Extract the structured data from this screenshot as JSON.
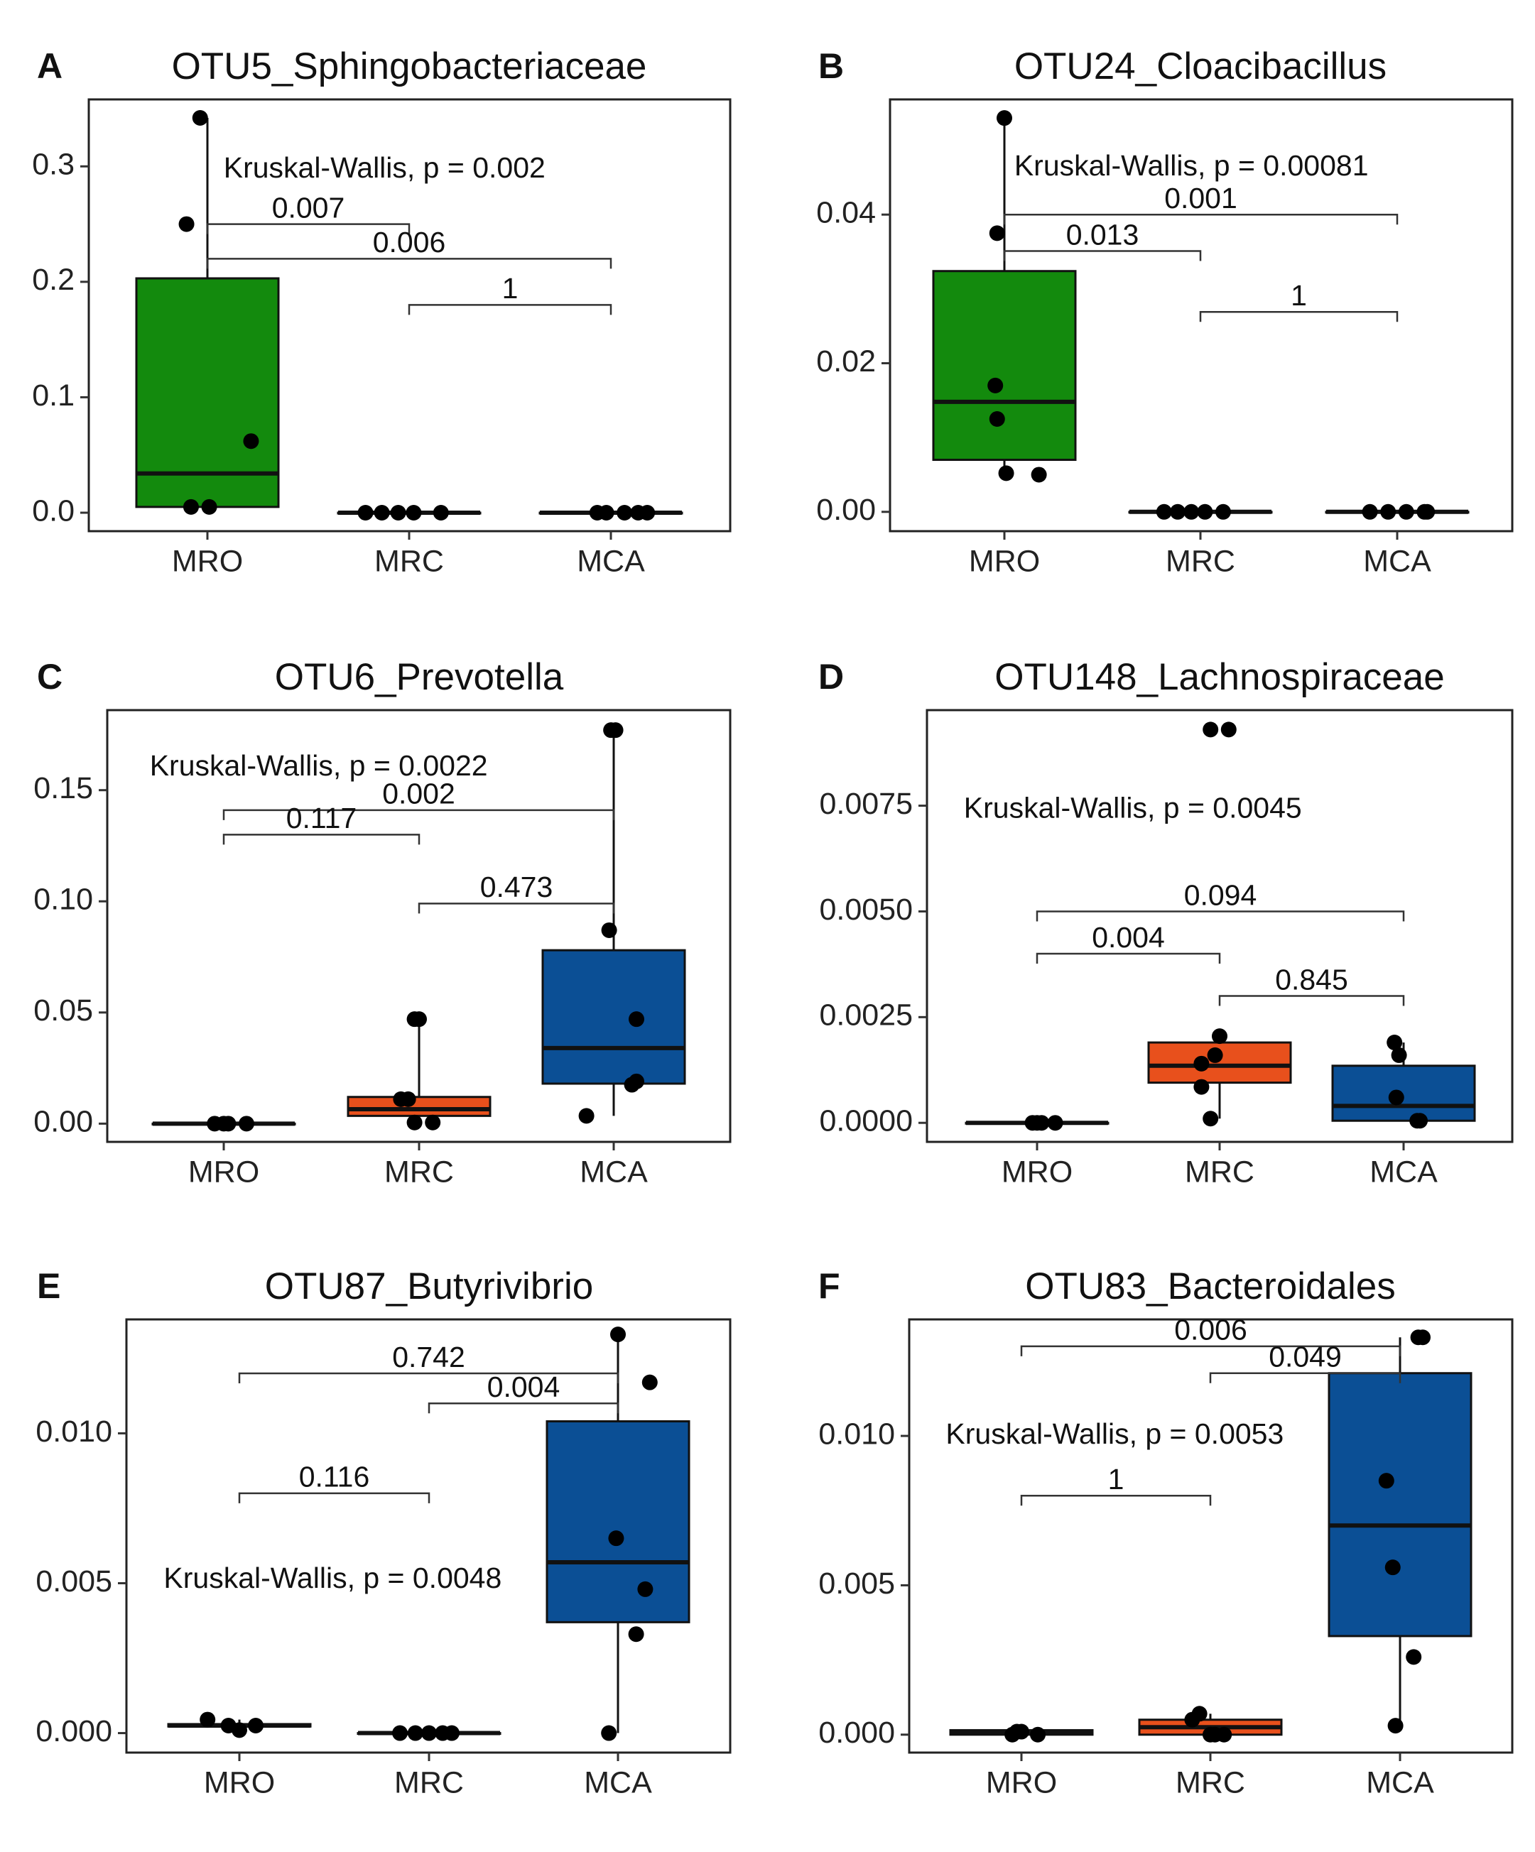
{
  "chart_data": [
    {
      "panel": "A",
      "type": "box",
      "title": "OTU5_Sphingobacteriaceae",
      "categories": [
        "MRO",
        "MRC",
        "MCA"
      ],
      "ylim": [
        -0.016,
        0.358
      ],
      "yticks": [
        {
          "value": 0.0,
          "label": "0.0"
        },
        {
          "value": 0.1,
          "label": "0.1"
        },
        {
          "value": 0.2,
          "label": "0.2"
        },
        {
          "value": 0.3,
          "label": "0.3"
        }
      ],
      "boxes": [
        {
          "group": "MRO",
          "color": "#138a0d",
          "q1": 0.005,
          "median": 0.034,
          "q3": 0.203,
          "wlow": 0.005,
          "whigh": 0.342,
          "points": [
            {
              "j": -0.08,
              "v": 0.342
            },
            {
              "j": -0.23,
              "v": 0.25
            },
            {
              "j": 0.48,
              "v": 0.062
            },
            {
              "j": -0.18,
              "v": 0.005
            },
            {
              "j": 0.02,
              "v": 0.005
            }
          ]
        },
        {
          "group": "MRC",
          "color": "#e8501c",
          "q1": 0.0,
          "median": 0.0,
          "q3": 0.0,
          "wlow": 0.0,
          "whigh": 0.0,
          "points": [
            {
              "j": -0.48,
              "v": 0.0
            },
            {
              "j": -0.3,
              "v": 0.0
            },
            {
              "j": -0.12,
              "v": 0.0
            },
            {
              "j": 0.05,
              "v": 0.0
            },
            {
              "j": 0.35,
              "v": 0.0
            }
          ]
        },
        {
          "group": "MCA",
          "color": "#0b4f95",
          "q1": 0.0,
          "median": 0.0,
          "q3": 0.0,
          "wlow": 0.0,
          "whigh": 0.0,
          "points": [
            {
              "j": -0.15,
              "v": 0.0
            },
            {
              "j": -0.05,
              "v": 0.0
            },
            {
              "j": 0.15,
              "v": 0.0
            },
            {
              "j": 0.3,
              "v": 0.0
            },
            {
              "j": 0.4,
              "v": 0.0
            }
          ]
        }
      ],
      "comparisons": [
        {
          "from": 1,
          "to": 2,
          "y": 0.25,
          "label": "0.007"
        },
        {
          "from": 1,
          "to": 3,
          "y": 0.22,
          "label": "0.006"
        },
        {
          "from": 2,
          "to": 3,
          "y": 0.18,
          "label": "1"
        }
      ],
      "stat": {
        "text": "Kruskal-Wallis, p = 0.002",
        "x": 1.08,
        "y": 0.297
      }
    },
    {
      "panel": "B",
      "type": "box",
      "title": "OTU24_Cloacibacillus",
      "categories": [
        "MRO",
        "MRC",
        "MCA"
      ],
      "ylim": [
        -0.0026,
        0.0555
      ],
      "yticks": [
        {
          "value": 0.0,
          "label": "0.00"
        },
        {
          "value": 0.02,
          "label": "0.02"
        },
        {
          "value": 0.04,
          "label": "0.04"
        }
      ],
      "boxes": [
        {
          "group": "MRO",
          "color": "#138a0d",
          "q1": 0.007,
          "median": 0.0148,
          "q3": 0.0324,
          "wlow": 0.005,
          "whigh": 0.053,
          "points": [
            {
              "j": 0.0,
              "v": 0.053
            },
            {
              "j": -0.08,
              "v": 0.0375
            },
            {
              "j": -0.1,
              "v": 0.017
            },
            {
              "j": -0.08,
              "v": 0.0125
            },
            {
              "j": 0.02,
              "v": 0.0052
            },
            {
              "j": 0.38,
              "v": 0.005
            }
          ]
        },
        {
          "group": "MRC",
          "color": "#e8501c",
          "q1": 0.0,
          "median": 0.0,
          "q3": 0.0,
          "wlow": 0.0,
          "whigh": 0.0,
          "points": [
            {
              "j": -0.4,
              "v": 0.0
            },
            {
              "j": -0.25,
              "v": 0.0
            },
            {
              "j": -0.1,
              "v": 0.0
            },
            {
              "j": 0.05,
              "v": 0.0
            },
            {
              "j": 0.25,
              "v": 0.0
            }
          ]
        },
        {
          "group": "MCA",
          "color": "#0b4f95",
          "q1": 0.0,
          "median": 0.0,
          "q3": 0.0,
          "wlow": 0.0,
          "whigh": 0.0,
          "points": [
            {
              "j": -0.3,
              "v": 0.0
            },
            {
              "j": -0.1,
              "v": 0.0
            },
            {
              "j": 0.1,
              "v": 0.0
            },
            {
              "j": 0.3,
              "v": 0.0
            },
            {
              "j": 0.33,
              "v": 0.0
            }
          ]
        }
      ],
      "comparisons": [
        {
          "from": 1,
          "to": 3,
          "y": 0.04,
          "label": "0.001"
        },
        {
          "from": 1,
          "to": 2,
          "y": 0.0351,
          "label": "0.013"
        },
        {
          "from": 2,
          "to": 3,
          "y": 0.0269,
          "label": "1"
        }
      ],
      "stat": {
        "text": "Kruskal-Wallis, p = 0.00081",
        "x": 1.05,
        "y": 0.0463
      }
    },
    {
      "panel": "C",
      "type": "box",
      "title": "OTU6_Prevotella",
      "categories": [
        "MRO",
        "MRC",
        "MCA"
      ],
      "ylim": [
        -0.0082,
        0.186
      ],
      "yticks": [
        {
          "value": 0.0,
          "label": "0.00"
        },
        {
          "value": 0.05,
          "label": "0.05"
        },
        {
          "value": 0.1,
          "label": "0.10"
        },
        {
          "value": 0.15,
          "label": "0.15"
        }
      ],
      "boxes": [
        {
          "group": "MRO",
          "color": "#138a0d",
          "q1": 0.0,
          "median": 0.0,
          "q3": 0.0,
          "wlow": 0.0,
          "whigh": 0.0,
          "points": [
            {
              "j": -0.1,
              "v": 0.0
            },
            {
              "j": 0.0,
              "v": 0.0
            },
            {
              "j": 0.05,
              "v": 0.0
            },
            {
              "j": 0.25,
              "v": 0.0
            }
          ]
        },
        {
          "group": "MRC",
          "color": "#e8501c",
          "q1": 0.0035,
          "median": 0.0065,
          "q3": 0.012,
          "wlow": 0.0005,
          "whigh": 0.047,
          "points": [
            {
              "j": -0.05,
              "v": 0.047
            },
            {
              "j": 0.0,
              "v": 0.047
            },
            {
              "j": -0.2,
              "v": 0.011
            },
            {
              "j": -0.12,
              "v": 0.011
            },
            {
              "j": -0.05,
              "v": 0.0005
            },
            {
              "j": 0.15,
              "v": 0.0005
            }
          ]
        },
        {
          "group": "MCA",
          "color": "#0b4f95",
          "q1": 0.018,
          "median": 0.034,
          "q3": 0.078,
          "wlow": 0.0035,
          "whigh": 0.177,
          "points": [
            {
              "j": -0.03,
              "v": 0.177
            },
            {
              "j": 0.02,
              "v": 0.177
            },
            {
              "j": -0.05,
              "v": 0.087
            },
            {
              "j": 0.25,
              "v": 0.047
            },
            {
              "j": 0.25,
              "v": 0.019
            },
            {
              "j": 0.2,
              "v": 0.0175
            },
            {
              "j": -0.3,
              "v": 0.0035
            }
          ]
        }
      ],
      "comparisons": [
        {
          "from": 1,
          "to": 3,
          "y": 0.141,
          "label": "0.002"
        },
        {
          "from": 1,
          "to": 2,
          "y": 0.13,
          "label": "0.117"
        },
        {
          "from": 2,
          "to": 3,
          "y": 0.099,
          "label": "0.473"
        }
      ],
      "stat": {
        "text": "Kruskal-Wallis, p = 0.0022",
        "x": 0.62,
        "y": 0.16
      }
    },
    {
      "panel": "D",
      "type": "box",
      "title": "OTU148_Lachnospiraceae",
      "categories": [
        "MRO",
        "MRC",
        "MCA"
      ],
      "ylim": [
        -0.00045,
        0.00976
      ],
      "yticks": [
        {
          "value": 0.0,
          "label": "0.0000"
        },
        {
          "value": 0.0025,
          "label": "0.0025"
        },
        {
          "value": 0.005,
          "label": "0.0050"
        },
        {
          "value": 0.0075,
          "label": "0.0075"
        }
      ],
      "boxes": [
        {
          "group": "MRO",
          "color": "#138a0d",
          "q1": 0.0,
          "median": 0.0,
          "q3": 0.0,
          "wlow": 0.0,
          "whigh": 0.0,
          "points": [
            {
              "j": -0.05,
              "v": 0.0
            },
            {
              "j": 0.0,
              "v": 0.0
            },
            {
              "j": 0.05,
              "v": 0.0
            },
            {
              "j": 0.2,
              "v": 0.0
            }
          ]
        },
        {
          "group": "MRC",
          "color": "#e8501c",
          "q1": 0.00095,
          "median": 0.00135,
          "q3": 0.0019,
          "wlow": 0.0001,
          "whigh": 0.00205,
          "points": [
            {
              "j": -0.1,
              "v": 0.0093
            },
            {
              "j": 0.1,
              "v": 0.0093
            },
            {
              "j": 0.0,
              "v": 0.00205
            },
            {
              "j": -0.05,
              "v": 0.0016
            },
            {
              "j": -0.2,
              "v": 0.0014
            },
            {
              "j": -0.2,
              "v": 0.00085
            },
            {
              "j": -0.1,
              "v": 0.0001
            }
          ]
        },
        {
          "group": "MCA",
          "color": "#0b4f95",
          "q1": 5e-05,
          "median": 0.0004,
          "q3": 0.00135,
          "wlow": 5e-05,
          "whigh": 0.0019,
          "points": [
            {
              "j": -0.1,
              "v": 0.0019
            },
            {
              "j": -0.05,
              "v": 0.0016
            },
            {
              "j": -0.08,
              "v": 0.0006
            },
            {
              "j": 0.15,
              "v": 5e-05
            },
            {
              "j": 0.18,
              "v": 5e-05
            }
          ]
        }
      ],
      "comparisons": [
        {
          "from": 1,
          "to": 3,
          "y": 0.005,
          "label": "0.094"
        },
        {
          "from": 1,
          "to": 2,
          "y": 0.004,
          "label": "0.004"
        },
        {
          "from": 2,
          "to": 3,
          "y": 0.003,
          "label": "0.845"
        }
      ],
      "stat": {
        "text": "Kruskal-Wallis, p = 0.0045",
        "x": 0.6,
        "y": 0.0074
      }
    },
    {
      "panel": "E",
      "type": "box",
      "title": "OTU87_Butyrivibrio",
      "categories": [
        "MRO",
        "MRC",
        "MCA"
      ],
      "ylim": [
        -0.00065,
        0.0138
      ],
      "yticks": [
        {
          "value": 0.0,
          "label": "0.000"
        },
        {
          "value": 0.005,
          "label": "0.005"
        },
        {
          "value": 0.01,
          "label": "0.010"
        }
      ],
      "boxes": [
        {
          "group": "MRO",
          "color": "#138a0d",
          "q1": 0.00022,
          "median": 0.00025,
          "q3": 0.0003,
          "wlow": 0.0001,
          "whigh": 0.00045,
          "points": [
            {
              "j": -0.35,
              "v": 0.00045
            },
            {
              "j": -0.12,
              "v": 0.00025
            },
            {
              "j": 0.0,
              "v": 0.0001
            },
            {
              "j": 0.18,
              "v": 0.00025
            }
          ]
        },
        {
          "group": "MRC",
          "color": "#e8501c",
          "q1": 0.0,
          "median": 0.0,
          "q3": 0.0,
          "wlow": 0.0,
          "whigh": 0.0,
          "points": [
            {
              "j": -0.32,
              "v": 0.0
            },
            {
              "j": -0.15,
              "v": 0.0
            },
            {
              "j": 0.0,
              "v": 0.0
            },
            {
              "j": 0.15,
              "v": 0.0
            },
            {
              "j": 0.25,
              "v": 0.0
            }
          ]
        },
        {
          "group": "MCA",
          "color": "#0b4f95",
          "q1": 0.0037,
          "median": 0.0057,
          "q3": 0.0104,
          "wlow": 0.0,
          "whigh": 0.0133,
          "points": [
            {
              "j": 0.0,
              "v": 0.0133
            },
            {
              "j": 0.35,
              "v": 0.0117
            },
            {
              "j": -0.02,
              "v": 0.0065
            },
            {
              "j": 0.3,
              "v": 0.0048
            },
            {
              "j": 0.2,
              "v": 0.0033
            },
            {
              "j": -0.1,
              "v": 0.0
            }
          ]
        }
      ],
      "comparisons": [
        {
          "from": 1,
          "to": 3,
          "y": 0.012,
          "label": "0.742"
        },
        {
          "from": 2,
          "to": 3,
          "y": 0.011,
          "label": "0.004"
        },
        {
          "from": 1,
          "to": 2,
          "y": 0.008,
          "label": "0.116"
        }
      ],
      "stat": {
        "text": "Kruskal-Wallis, p = 0.0048",
        "x": 0.6,
        "y": 0.0051
      }
    },
    {
      "panel": "F",
      "type": "box",
      "title": "OTU83_Bacteroidales",
      "categories": [
        "MRO",
        "MRC",
        "MCA"
      ],
      "ylim": [
        -0.0006,
        0.0139
      ],
      "yticks": [
        {
          "value": 0.0,
          "label": "0.000"
        },
        {
          "value": 0.005,
          "label": "0.005"
        },
        {
          "value": 0.01,
          "label": "0.010"
        }
      ],
      "boxes": [
        {
          "group": "MRO",
          "color": "#138a0d",
          "q1": 0.0,
          "median": 0.0001,
          "q3": 0.00015,
          "wlow": 0.0,
          "whigh": 0.0002,
          "points": [
            {
              "j": -0.1,
              "v": 0.0
            },
            {
              "j": -0.05,
              "v": 0.0001
            },
            {
              "j": 0.0,
              "v": 0.0001
            },
            {
              "j": 0.18,
              "v": 0.0
            }
          ]
        },
        {
          "group": "MRC",
          "color": "#e8501c",
          "q1": 0.0,
          "median": 0.00025,
          "q3": 0.0005,
          "wlow": 0.0,
          "whigh": 0.0007,
          "points": [
            {
              "j": -0.2,
              "v": 0.0005
            },
            {
              "j": -0.12,
              "v": 0.0007
            },
            {
              "j": 0.0,
              "v": 0.0
            },
            {
              "j": 0.05,
              "v": 0.0
            },
            {
              "j": 0.15,
              "v": 0.0
            }
          ]
        },
        {
          "group": "MCA",
          "color": "#0b4f95",
          "q1": 0.0033,
          "median": 0.007,
          "q3": 0.0121,
          "wlow": 0.0003,
          "whigh": 0.0133,
          "points": [
            {
              "j": 0.2,
              "v": 0.0133
            },
            {
              "j": 0.25,
              "v": 0.0133
            },
            {
              "j": -0.15,
              "v": 0.0085
            },
            {
              "j": -0.08,
              "v": 0.0056
            },
            {
              "j": 0.15,
              "v": 0.0026
            },
            {
              "j": -0.05,
              "v": 0.0003
            }
          ]
        }
      ],
      "comparisons": [
        {
          "from": 1,
          "to": 3,
          "y": 0.013,
          "label": "0.006"
        },
        {
          "from": 2,
          "to": 3,
          "y": 0.0121,
          "label": "0.049"
        },
        {
          "from": 1,
          "to": 2,
          "y": 0.008,
          "label": "1"
        }
      ],
      "stat": {
        "text": "Kruskal-Wallis, p = 0.0053",
        "x": 0.6,
        "y": 0.01
      }
    }
  ]
}
